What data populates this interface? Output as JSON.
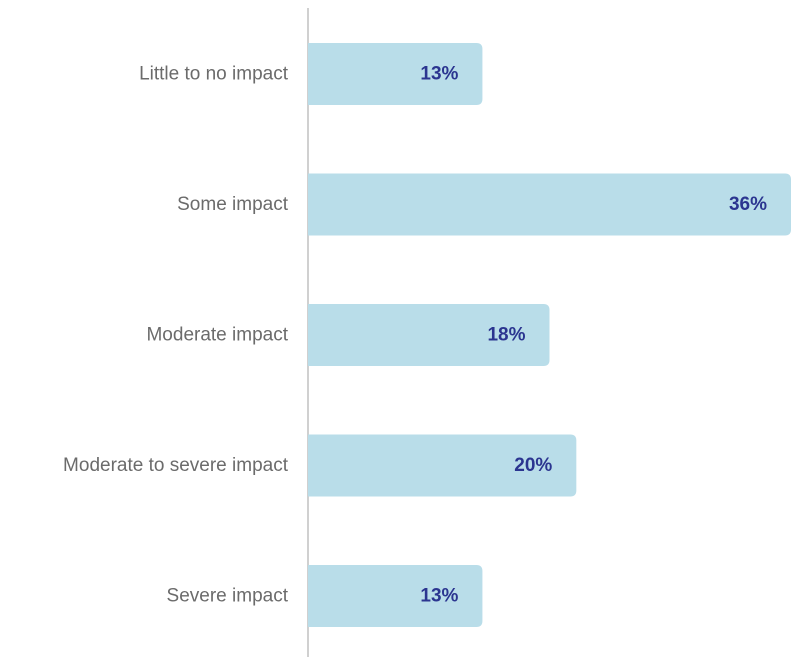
{
  "chart_data": {
    "type": "bar",
    "orientation": "horizontal",
    "categories": [
      "Little to no impact",
      "Some impact",
      "Moderate impact",
      "Moderate to severe impact",
      "Severe impact"
    ],
    "values": [
      13,
      36,
      18,
      20,
      13
    ],
    "value_labels": [
      "13%",
      "36%",
      "18%",
      "20%",
      "13%"
    ],
    "unit": "%",
    "title": "",
    "xlabel": "",
    "ylabel": "",
    "xlim": [
      0,
      36
    ],
    "grid": false,
    "legend": "none",
    "colors": {
      "bar": "#b9dde9",
      "value_text": "#2b3590",
      "category_text": "#6b6b6b",
      "axis": "#d0d0d0"
    }
  }
}
